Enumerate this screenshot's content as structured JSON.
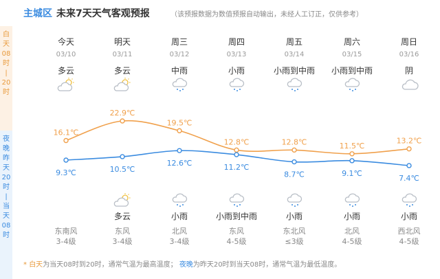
{
  "header": {
    "district": "主城区",
    "title": "未来7天天气客观预报",
    "note": "（该预报数据为数值预报自动输出，未经人工订正，仅供参考）"
  },
  "side": {
    "day_label": [
      "白",
      "天",
      "08",
      "时",
      "|",
      "20",
      "时"
    ],
    "night_label": [
      "夜",
      "晚",
      "昨",
      "天",
      "20",
      "时",
      "|",
      "当",
      "天",
      "08",
      "时"
    ]
  },
  "days": [
    {
      "name": "今天",
      "date": "03/10",
      "day_weather": "多云",
      "day_icon": "partly-cloudy-icon",
      "night_weather": "",
      "night_icon": "",
      "wind": "东南风",
      "level": "3-4级"
    },
    {
      "name": "明天",
      "date": "03/11",
      "day_weather": "多云",
      "day_icon": "partly-cloudy-icon",
      "night_weather": "多云",
      "night_icon": "partly-cloudy-icon",
      "wind": "东风",
      "level": "3-4级"
    },
    {
      "name": "周三",
      "date": "03/12",
      "day_weather": "中雨",
      "day_icon": "rain-icon",
      "night_weather": "小雨",
      "night_icon": "rain-icon",
      "wind": "北风",
      "level": "3-4级"
    },
    {
      "name": "周四",
      "date": "03/13",
      "day_weather": "小雨",
      "day_icon": "rain-icon",
      "night_weather": "小雨到中雨",
      "night_icon": "rain-icon",
      "wind": "东风",
      "level": "4-5级"
    },
    {
      "name": "周五",
      "date": "03/14",
      "day_weather": "小雨到中雨",
      "day_icon": "rain-icon",
      "night_weather": "小雨",
      "night_icon": "rain-icon",
      "wind": "东北风",
      "level": "≤3级"
    },
    {
      "name": "周六",
      "date": "03/15",
      "day_weather": "小雨到中雨",
      "day_icon": "rain-icon",
      "night_weather": "小雨",
      "night_icon": "rain-icon",
      "wind": "北风",
      "level": "4-5级"
    },
    {
      "name": "周日",
      "date": "03/16",
      "day_weather": "阴",
      "day_icon": "overcast-icon",
      "night_weather": "小雨",
      "night_icon": "rain-icon",
      "wind": "西北风",
      "level": "4-5级"
    }
  ],
  "chart_data": {
    "type": "line",
    "categories": [
      "03/10",
      "03/11",
      "03/12",
      "03/13",
      "03/14",
      "03/15",
      "03/16"
    ],
    "series": [
      {
        "name": "白天",
        "values": [
          16.1,
          22.9,
          19.5,
          12.8,
          12.8,
          11.5,
          13.2
        ],
        "color": "#f0a04b"
      },
      {
        "name": "夜晚",
        "values": [
          9.3,
          10.5,
          12.6,
          11.2,
          8.7,
          9.1,
          7.4
        ],
        "color": "#3a8be0"
      }
    ],
    "unit": "℃",
    "day_labels": [
      "16.1℃",
      "22.9℃",
      "19.5℃",
      "12.8℃",
      "12.8℃",
      "11.5℃",
      "13.2℃"
    ],
    "night_labels": [
      "9.3℃",
      "10.5℃",
      "12.6℃",
      "11.2℃",
      "8.7℃",
      "9.1℃",
      "7.4℃"
    ]
  },
  "footer": {
    "star": "*",
    "day_term": "白天",
    "day_desc": "为当天08时到20时，通常气温为最高温度；",
    "night_term": "夜晚",
    "night_desc": "为昨天20时到当天08时，通常气温为最低温度。"
  },
  "colors": {
    "accent": "#3a8be0",
    "day": "#f0a04b",
    "night": "#3a8be0",
    "icon": "#b8bec6"
  }
}
